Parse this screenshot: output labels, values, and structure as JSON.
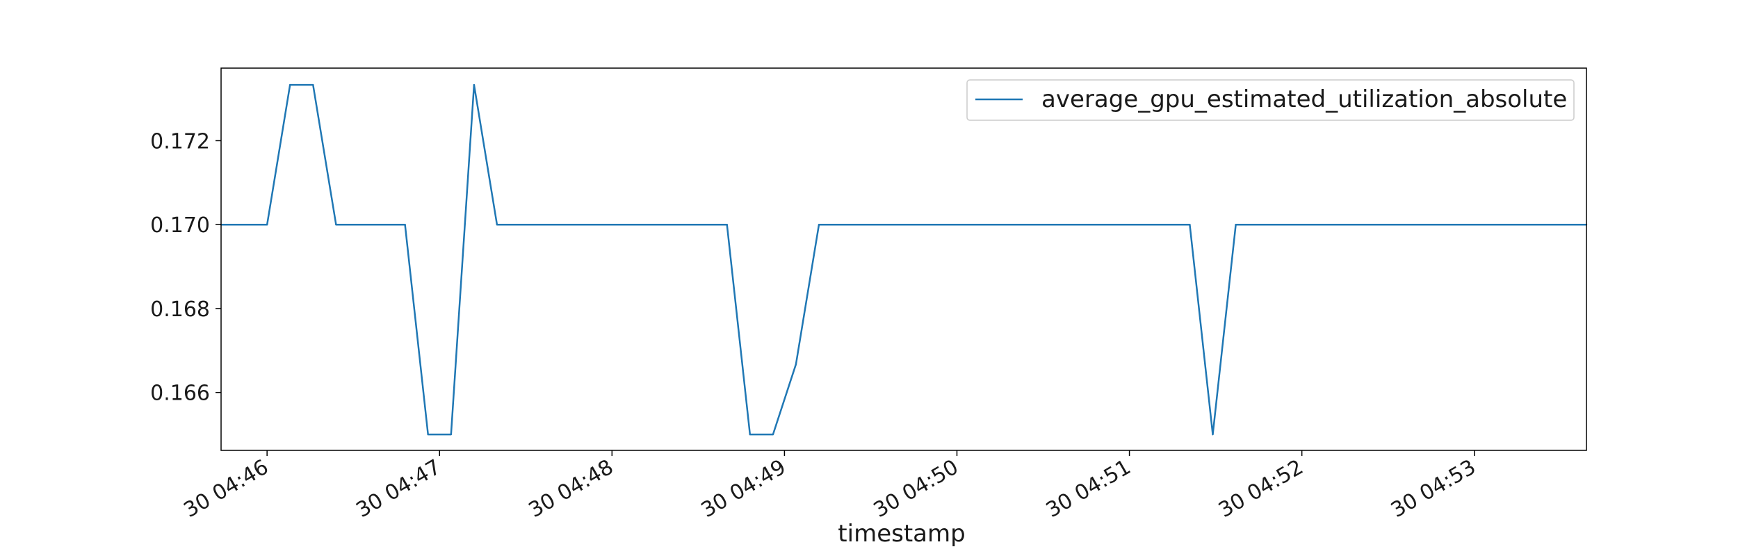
{
  "chart_data": {
    "type": "line",
    "xlabel": "timestamp",
    "ylabel": "",
    "title": "",
    "ylim": [
      0.16462,
      0.17373
    ],
    "yticks": [
      0.166,
      0.168,
      0.17,
      0.172
    ],
    "ytick_labels": [
      "0.166",
      "0.168",
      "0.170",
      "0.172"
    ],
    "xlim": [
      "30 04:45:44",
      "30 04:53:39"
    ],
    "xticks": [
      "30 04:46:00",
      "30 04:47:00",
      "30 04:48:00",
      "30 04:49:00",
      "30 04:50:00",
      "30 04:51:00",
      "30 04:52:00",
      "30 04:53:00"
    ],
    "xtick_labels": [
      "30 04:46",
      "30 04:47",
      "30 04:48",
      "30 04:49",
      "30 04:50",
      "30 04:51",
      "30 04:52",
      "30 04:53"
    ],
    "legend_position": "top-right",
    "grid": false,
    "series": [
      {
        "name": "average_gpu_estimated_utilization_absolute",
        "color": "#1f77b4",
        "x": [
          "30 04:45:44",
          "30 04:46:00",
          "30 04:46:08",
          "30 04:46:16",
          "30 04:46:24",
          "30 04:46:48",
          "30 04:46:56",
          "30 04:47:04",
          "30 04:47:12",
          "30 04:47:20",
          "30 04:48:40",
          "30 04:48:48",
          "30 04:48:56",
          "30 04:49:04",
          "30 04:49:12",
          "30 04:51:21",
          "30 04:51:29",
          "30 04:51:37",
          "30 04:53:39"
        ],
        "y": [
          0.17,
          0.17,
          0.17333,
          0.17333,
          0.17,
          0.17,
          0.165,
          0.165,
          0.17333,
          0.17,
          0.17,
          0.165,
          0.165,
          0.16667,
          0.17,
          0.17,
          0.165,
          0.17,
          0.17
        ]
      }
    ]
  }
}
